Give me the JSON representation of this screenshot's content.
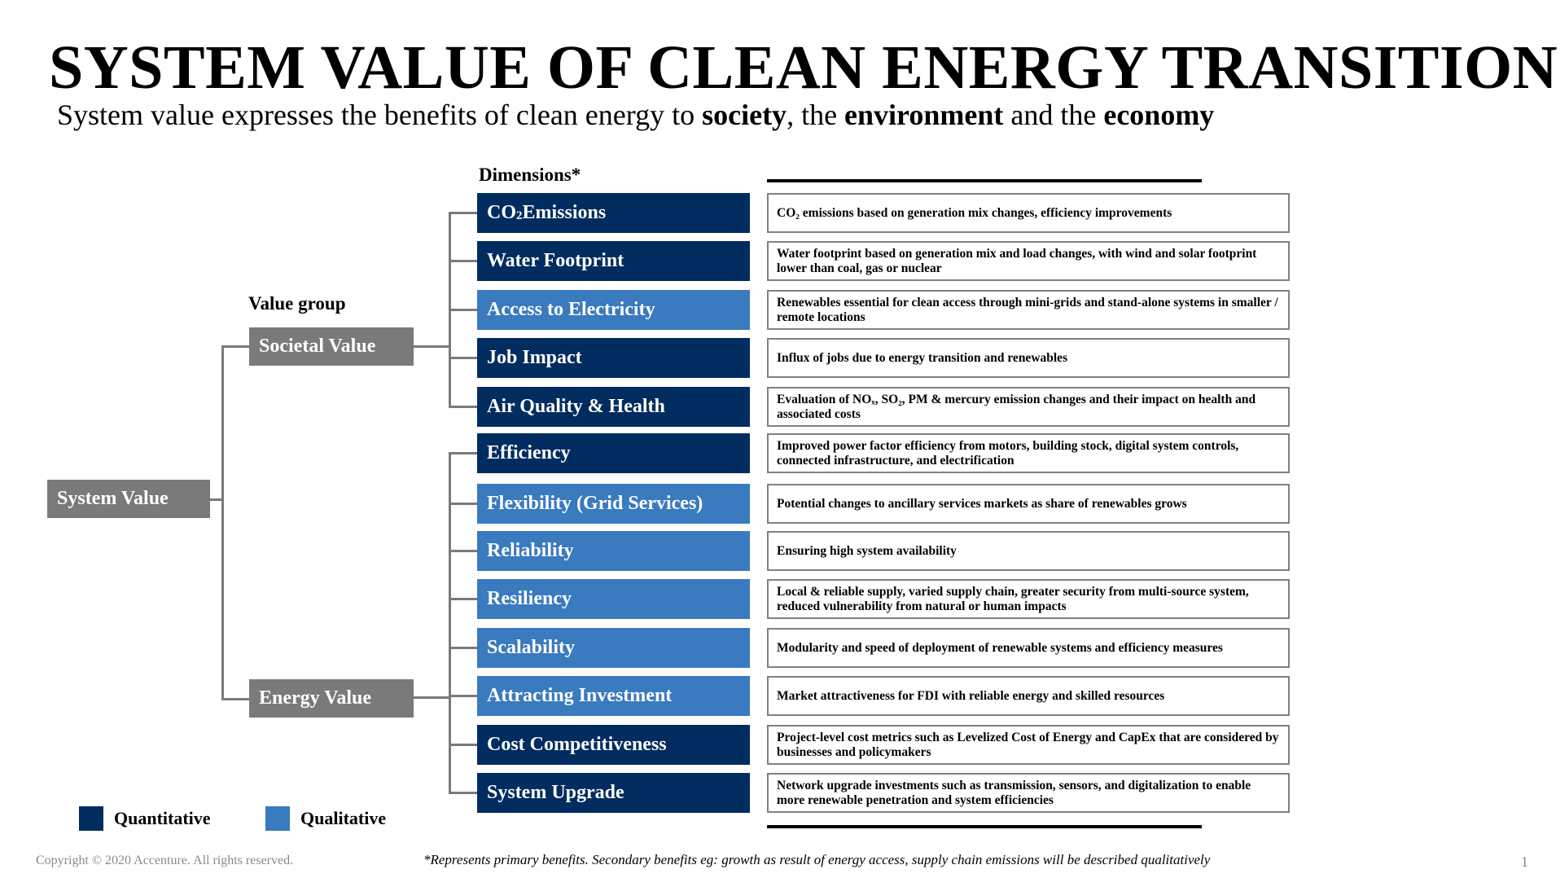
{
  "title": "SYSTEM VALUE OF CLEAN ENERGY TRANSITION",
  "subtitle": {
    "t1": "System value expresses the benefits of clean energy to ",
    "b1": "society",
    "t2": ", the ",
    "b2": "environment",
    "t3": " and the ",
    "b3": "economy"
  },
  "headers": {
    "dimensions": "Dimensions*",
    "value_group": "Value group"
  },
  "root": "System Value",
  "groups": {
    "societal": "Societal Value",
    "energy": "Energy Value"
  },
  "colors": {
    "quantitative": "#002c5f",
    "qualitative": "#3a7abf",
    "group": "#7a7a7a"
  },
  "dimensions": [
    {
      "label": "CO",
      "sub": "2",
      "label_rest": " Emissions",
      "type": "quantitative"
    },
    {
      "label": "Water Footprint",
      "type": "quantitative"
    },
    {
      "label": "Access to Electricity",
      "type": "qualitative"
    },
    {
      "label": "Job Impact",
      "type": "quantitative"
    },
    {
      "label": "Air Quality & Health",
      "type": "quantitative"
    },
    {
      "label": "Efficiency",
      "type": "quantitative"
    },
    {
      "label": "Flexibility (Grid Services)",
      "type": "qualitative"
    },
    {
      "label": "Reliability",
      "type": "qualitative"
    },
    {
      "label": "Resiliency",
      "type": "qualitative"
    },
    {
      "label": "Scalability",
      "type": "qualitative"
    },
    {
      "label": "Attracting Investment",
      "type": "qualitative"
    },
    {
      "label": "Cost Competitiveness",
      "type": "quantitative"
    },
    {
      "label": "System Upgrade",
      "type": "quantitative"
    }
  ],
  "descriptions": [
    "CO₂ emissions based on generation mix changes, efficiency improvements",
    "Water footprint based on generation mix and load changes, with wind and solar footprint lower than coal, gas or nuclear",
    "Renewables essential for clean access through mini-grids and stand-alone systems in smaller / remote locations",
    "Influx of jobs due to energy transition and renewables",
    "Evaluation of NOₓ, SO₂, PM & mercury emission changes and their impact on health and associated costs",
    "Improved power factor efficiency from motors, building stock, digital system controls, connected infrastructure, and electrification",
    "Potential changes to ancillary services markets as share of renewables grows",
    "Ensuring high system availability",
    "Local & reliable supply, varied supply chain, greater security from multi-source system, reduced vulnerability from natural or human impacts",
    "Modularity and speed of deployment of renewable systems and  efficiency measures",
    "Market attractiveness for FDI with reliable energy and skilled resources",
    "Project-level cost metrics such as Levelized Cost of Energy and CapEx that are considered by businesses and policymakers",
    "Network upgrade investments such as transmission, sensors, and digitalization to enable more renewable penetration and system efficiencies"
  ],
  "legend": {
    "quantitative": "Quantitative",
    "qualitative": "Qualitative"
  },
  "footer": {
    "copyright": "Copyright © 2020 Accenture. All rights reserved.",
    "footnote": "*Represents primary benefits. Secondary benefits eg: growth as result of energy access, supply chain emissions will be described qualitatively",
    "page": "1"
  }
}
